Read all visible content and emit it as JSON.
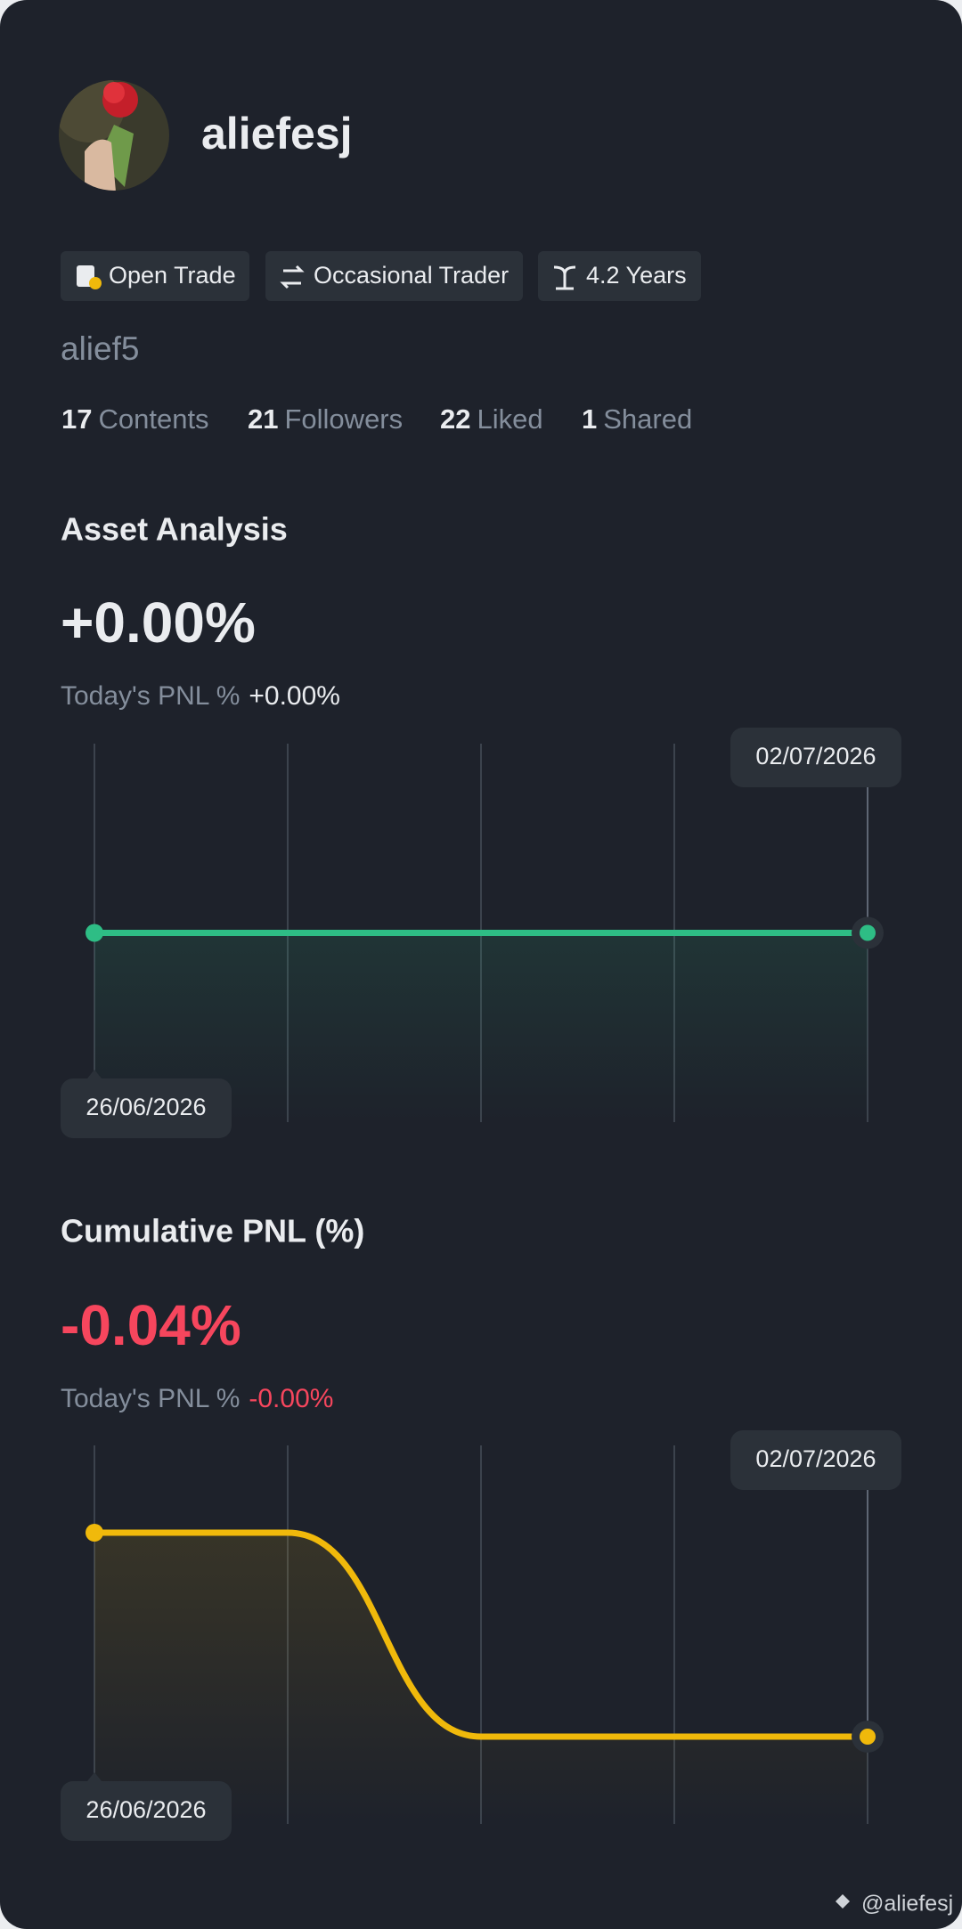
{
  "profile": {
    "name": "aliefesj",
    "handle": "alief5",
    "tags": [
      "Open Trade",
      "Occasional Trader",
      "4.2 Years"
    ],
    "stats": [
      {
        "value": 17,
        "label": "Contents"
      },
      {
        "value": 21,
        "label": "Followers"
      },
      {
        "value": 22,
        "label": "Liked"
      },
      {
        "value": 1,
        "label": "Shared"
      }
    ]
  },
  "chart_data": [
    {
      "type": "line",
      "title": "Asset Analysis",
      "headline": "+0.00%",
      "headline_color": "#eaecef",
      "subtitle_label": "Today's PNL %",
      "subtitle_value": "+0.00%",
      "subtitle_color": "#eaecef",
      "categories": [
        "26/06/2026",
        null,
        null,
        null,
        "02/07/2026"
      ],
      "values": [
        0,
        0,
        0,
        0,
        0
      ],
      "color": "#2ebd85",
      "smooth": false
    },
    {
      "type": "line",
      "title": "Cumulative PNL (%)",
      "headline": "-0.04%",
      "headline_color": "#f6465d",
      "subtitle_label": "Today's PNL %",
      "subtitle_value": "-0.00%",
      "subtitle_color": "#f6465d",
      "categories": [
        "26/06/2026",
        null,
        null,
        null,
        "02/07/2026"
      ],
      "values": [
        0,
        0,
        -0.04,
        -0.04,
        -0.04
      ],
      "color": "#f0b90b",
      "smooth": true
    }
  ],
  "watermark": "@aliefesj"
}
